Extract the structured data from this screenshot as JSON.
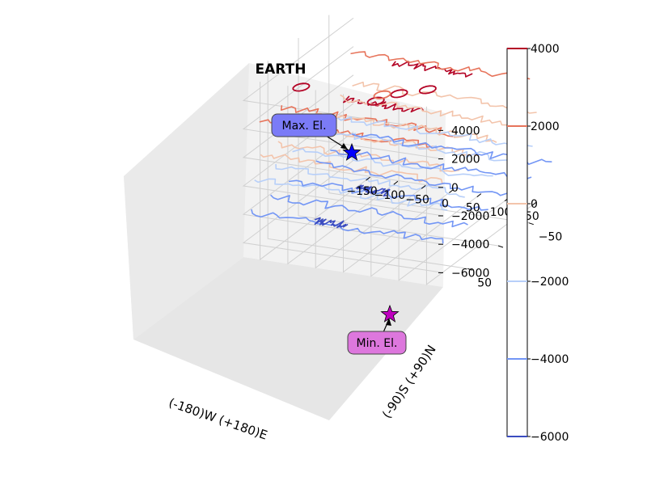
{
  "chart_data": {
    "type": "contour3d",
    "title": "EARTH",
    "xlabel": "(-180)W (+180)E",
    "ylabel": "(-90)S (+90)N",
    "xticks": [
      -150,
      -100,
      -50,
      0,
      50,
      100,
      150
    ],
    "yticks": [
      -50,
      0,
      50
    ],
    "zticks": [
      4000,
      2000,
      0,
      -2000,
      -4000,
      -6000
    ],
    "xlim": [
      -180,
      180
    ],
    "ylim": [
      -90,
      90
    ],
    "zlim": [
      -7000,
      5500
    ],
    "colorbar": {
      "ticks": [
        4000,
        2000,
        0,
        -2000,
        -4000,
        -6000
      ],
      "range": [
        -6000,
        4000
      ]
    },
    "contour_levels": [
      {
        "value": 4000,
        "color": "#b40426"
      },
      {
        "value": 2000,
        "color": "#e7745b"
      },
      {
        "value": 0,
        "color": "#f3c4ab"
      },
      {
        "value": -2000,
        "color": "#b7cff9"
      },
      {
        "value": -4000,
        "color": "#7396f5"
      },
      {
        "value": -6000,
        "color": "#3b4cc0"
      }
    ],
    "annotations": [
      {
        "label": "Max. El.",
        "color": "#7b7bf7",
        "marker_color": "#0000ff",
        "marker": "star"
      },
      {
        "label": "Min. El.",
        "color": "#dd77dd",
        "marker_color": "#bf00bf",
        "marker": "star"
      }
    ],
    "grid": true
  }
}
